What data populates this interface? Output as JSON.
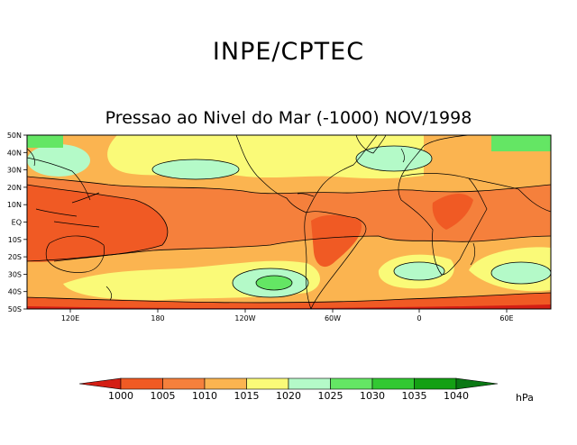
{
  "header": {
    "org_title": "INPE/CPTEC",
    "map_title": "Pressao ao Nivel do Mar (-1000) NOV/1998"
  },
  "axes": {
    "lat_labels": [
      "50N",
      "40N",
      "30N",
      "20N",
      "10N",
      "EQ",
      "10S",
      "20S",
      "30S",
      "40S",
      "50S"
    ],
    "lon_labels": [
      "120E",
      "180",
      "120W",
      "60W",
      "0",
      "60E"
    ]
  },
  "colorbar": {
    "unit": "hPa",
    "levels": [
      "1000",
      "1005",
      "1010",
      "1015",
      "1020",
      "1025",
      "1030",
      "1035",
      "1040"
    ],
    "colors": [
      "#d41e14",
      "#f05a24",
      "#f5803c",
      "#fbb450",
      "#fafa78",
      "#b4fac8",
      "#64e664",
      "#32c832",
      "#14a014",
      "#0a7814"
    ]
  },
  "colors": {
    "ocean_base": "#f5803c",
    "land_outline": "#000000"
  }
}
